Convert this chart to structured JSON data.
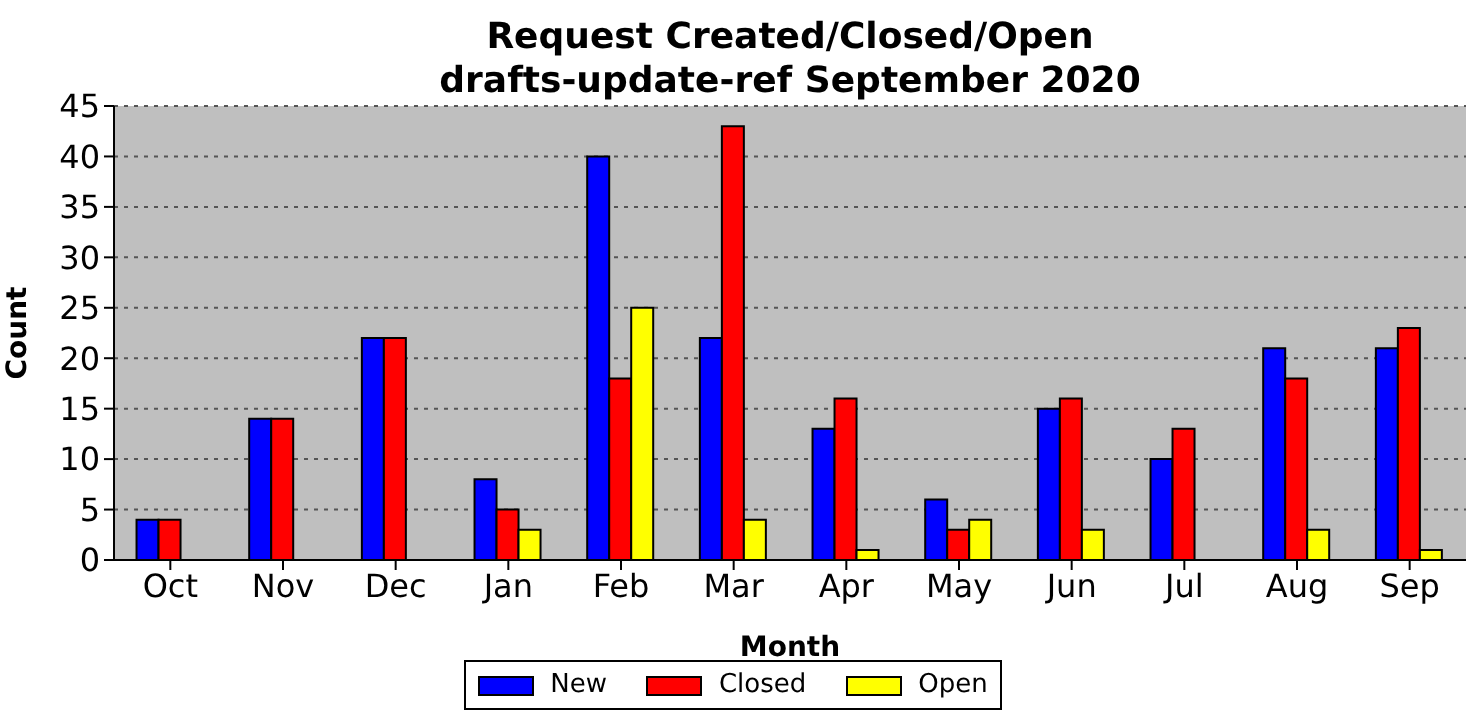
{
  "chart_data": {
    "type": "bar",
    "title": "Request Created/Closed/Open",
    "subtitle": "drafts-update-ref September 2020",
    "xlabel": "Month",
    "ylabel": "Count",
    "categories": [
      "Oct",
      "Nov",
      "Dec",
      "Jan",
      "Feb",
      "Mar",
      "Apr",
      "May",
      "Jun",
      "Jul",
      "Aug",
      "Sep"
    ],
    "series": [
      {
        "name": "New",
        "color": "#0000ff",
        "values": [
          4,
          14,
          22,
          8,
          40,
          22,
          13,
          6,
          15,
          10,
          21,
          21
        ]
      },
      {
        "name": "Closed",
        "color": "#ff0000",
        "values": [
          4,
          14,
          22,
          5,
          18,
          43,
          16,
          3,
          16,
          13,
          18,
          23
        ]
      },
      {
        "name": "Open",
        "color": "#ffff00",
        "values": [
          0,
          0,
          0,
          3,
          25,
          4,
          1,
          4,
          3,
          0,
          3,
          1
        ]
      }
    ],
    "ylim": [
      0,
      45
    ],
    "yticks": [
      0,
      5,
      10,
      15,
      20,
      25,
      30,
      35,
      40,
      45
    ],
    "grid": "y",
    "legend": "bottom"
  }
}
